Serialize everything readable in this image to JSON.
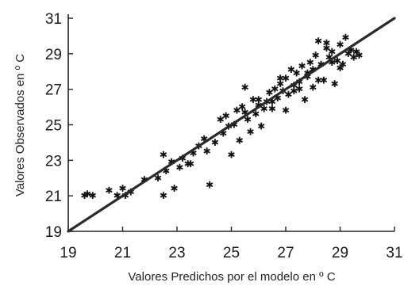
{
  "chart_data": {
    "type": "scatter",
    "title": "",
    "xlabel": "Valores Predichos por el modelo en º C",
    "ylabel": "Valores Observados en º C",
    "xlim": [
      19,
      31
    ],
    "ylim": [
      19,
      31
    ],
    "xticks": [
      19,
      21,
      23,
      25,
      27,
      29,
      31
    ],
    "yticks": [
      19,
      21,
      23,
      25,
      27,
      29,
      31
    ],
    "grid": false,
    "legend": "none",
    "marker_color": "#111111",
    "line_color": "#2a2a2a",
    "reference_line": {
      "x": [
        19,
        31
      ],
      "y": [
        19,
        31
      ]
    },
    "series": [
      {
        "x": [
          19.6,
          19.7,
          19.9,
          20.5,
          20.8,
          21.0,
          21.1,
          21.3,
          21.8,
          22.3,
          22.5,
          22.5,
          22.6,
          22.8,
          22.9,
          23.1,
          23.2,
          23.4,
          23.6,
          23.8,
          24.0,
          24.1,
          24.2,
          24.4,
          24.6,
          24.7,
          24.9,
          25.0,
          25.1,
          25.2,
          25.3,
          25.4,
          25.5,
          25.6,
          25.7,
          25.8,
          25.9,
          26.0,
          26.1,
          26.2,
          26.3,
          26.4,
          26.5,
          26.6,
          26.7,
          26.8,
          26.9,
          27.0,
          27.1,
          27.2,
          27.3,
          27.4,
          27.5,
          27.6,
          27.7,
          27.8,
          27.9,
          28.0,
          28.1,
          28.2,
          28.3,
          28.4,
          28.5,
          28.6,
          28.7,
          28.8,
          28.9,
          29.0,
          29.1,
          29.2,
          29.3,
          29.5,
          29.6,
          29.7,
          28.0,
          27.5,
          27.0,
          26.5,
          28.5,
          29.0,
          28.2,
          27.8,
          26.8,
          26.0,
          25.5,
          24.8,
          23.5,
          27.3,
          28.7,
          29.4
        ],
        "y": [
          21.0,
          21.1,
          21.0,
          21.3,
          21.0,
          21.4,
          21.0,
          21.2,
          21.9,
          22.0,
          23.3,
          21.0,
          22.4,
          22.9,
          21.4,
          22.6,
          23.1,
          22.8,
          23.4,
          23.8,
          24.2,
          23.5,
          21.6,
          24.0,
          25.3,
          24.5,
          24.9,
          23.3,
          25.0,
          25.8,
          24.1,
          26.0,
          27.1,
          25.3,
          24.6,
          26.4,
          25.6,
          26.1,
          24.9,
          25.9,
          26.3,
          26.8,
          25.9,
          27.0,
          26.5,
          27.3,
          26.9,
          27.6,
          26.7,
          28.1,
          27.2,
          27.9,
          27.4,
          28.3,
          26.4,
          27.7,
          28.5,
          27.1,
          28.9,
          29.7,
          28.4,
          27.5,
          29.3,
          28.8,
          29.1,
          27.3,
          28.6,
          29.5,
          28.4,
          29.9,
          29.0,
          28.8,
          29.1,
          28.9,
          28.1,
          27.0,
          25.8,
          26.3,
          29.6,
          28.2,
          27.5,
          27.9,
          27.6,
          26.4,
          25.7,
          25.5,
          22.8,
          26.9,
          28.5,
          29.2
        ]
      }
    ]
  }
}
